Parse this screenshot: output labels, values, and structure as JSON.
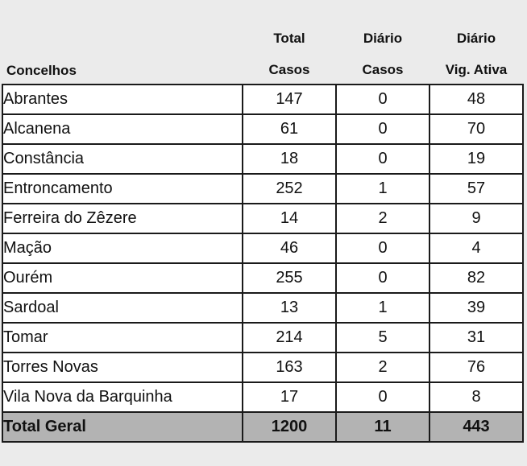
{
  "header": {
    "concelhos": "Concelhos",
    "total_line1": "Total",
    "total_line2": "Casos",
    "diario_line1": "Diário",
    "diario_line2": "Casos",
    "vig_line1": "Diário",
    "vig_line2": "Vig. Ativa"
  },
  "rows": [
    {
      "name": "Abrantes",
      "total": "147",
      "diario": "0",
      "vig": "48"
    },
    {
      "name": "Alcanena",
      "total": "61",
      "diario": "0",
      "vig": "70"
    },
    {
      "name": "Constância",
      "total": "18",
      "diario": "0",
      "vig": "19"
    },
    {
      "name": "Entroncamento",
      "total": "252",
      "diario": "1",
      "vig": "57"
    },
    {
      "name": "Ferreira do Zêzere",
      "total": "14",
      "diario": "2",
      "vig": "9"
    },
    {
      "name": "Mação",
      "total": "46",
      "diario": "0",
      "vig": "4"
    },
    {
      "name": "Ourém",
      "total": "255",
      "diario": "0",
      "vig": "82"
    },
    {
      "name": "Sardoal",
      "total": "13",
      "diario": "1",
      "vig": "39"
    },
    {
      "name": "Tomar",
      "total": "214",
      "diario": "5",
      "vig": "31"
    },
    {
      "name": "Torres Novas",
      "total": "163",
      "diario": "2",
      "vig": "76"
    },
    {
      "name": "Vila Nova da Barquinha",
      "total": "17",
      "diario": "0",
      "vig": "8"
    }
  ],
  "totals": {
    "name": "Total Geral",
    "total": "1200",
    "diario": "11",
    "vig": "443"
  },
  "colors": {
    "total_column": "#1ea7e8",
    "total_row": "#b3b3b3",
    "background": "#ebebeb"
  }
}
